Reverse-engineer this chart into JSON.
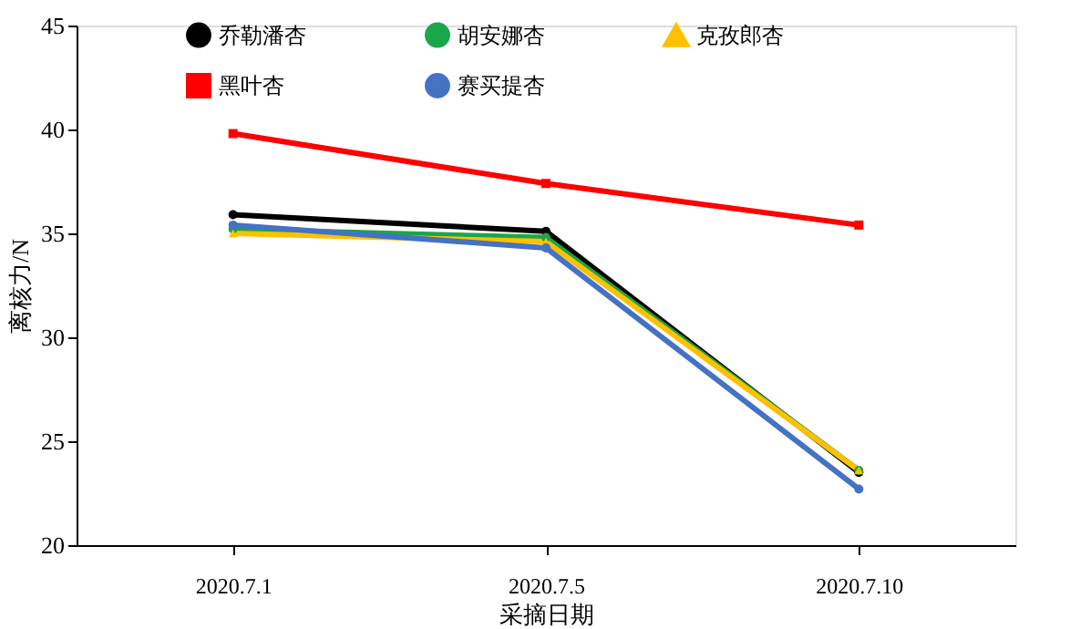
{
  "chart_data": {
    "type": "line",
    "xlabel": "采摘日期",
    "ylabel": "离核力/N",
    "categories": [
      "2020.7.1",
      "2020.7.5",
      "2020.7.10"
    ],
    "series": [
      {
        "name": "乔勒潘杏",
        "color": "#000000",
        "marker": "circle",
        "values": [
          35.9,
          35.1,
          23.5
        ]
      },
      {
        "name": "胡安娜杏",
        "color": "#1aa64a",
        "marker": "circle",
        "values": [
          35.2,
          34.8,
          23.6
        ]
      },
      {
        "name": "克孜郎杏",
        "color": "#ffc000",
        "marker": "triangle",
        "values": [
          35.0,
          34.6,
          23.6
        ]
      },
      {
        "name": "黑叶杏",
        "color": "#ff0000",
        "marker": "square",
        "values": [
          39.8,
          37.4,
          35.4
        ]
      },
      {
        "name": "赛买提杏",
        "color": "#4472c4",
        "marker": "circle",
        "values": [
          35.4,
          34.3,
          22.7
        ]
      }
    ],
    "ylim": [
      20,
      45
    ],
    "yticks": [
      20,
      25,
      30,
      35,
      40,
      45
    ],
    "grid": false,
    "legend": "top",
    "line_style": "solid"
  }
}
